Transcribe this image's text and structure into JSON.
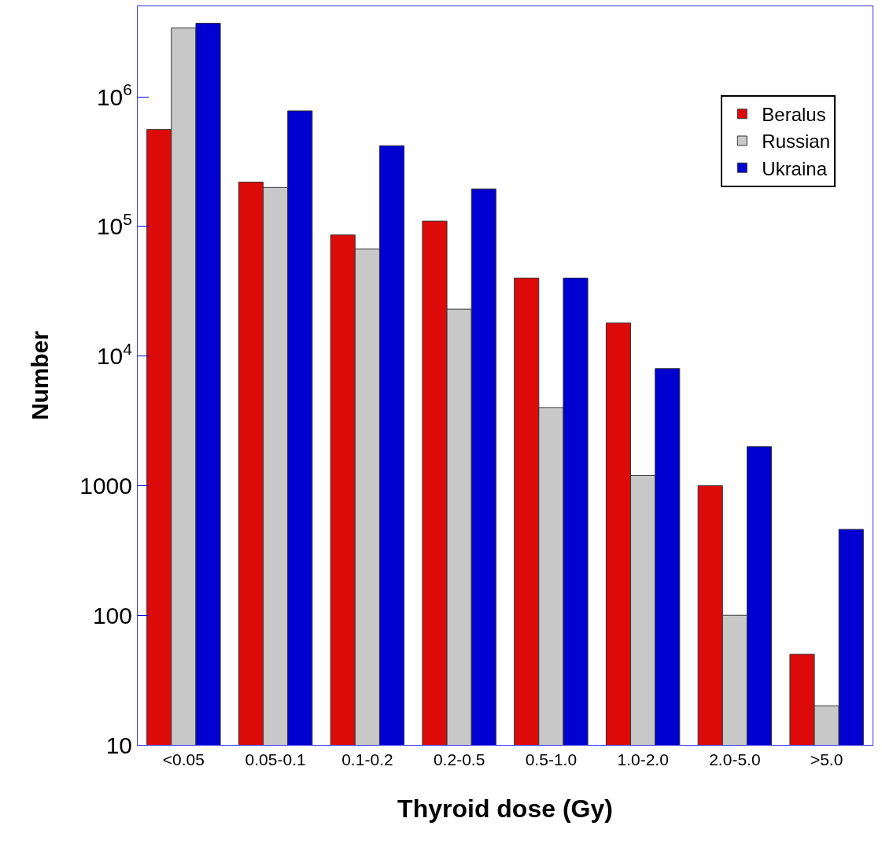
{
  "chart_data": {
    "type": "bar",
    "xlabel": "Thyroid dose (Gy)",
    "ylabel": "Number",
    "categories": [
      "<0.05",
      "0.05-0.1",
      "0.1-0.2",
      "0.2-0.5",
      "0.5-1.0",
      "1.0-2.0",
      "2.0-5.0",
      ">5.0"
    ],
    "series": [
      {
        "name": "Beralus",
        "color": "#dd0a0a",
        "values": [
          560000,
          220000,
          86000,
          110000,
          40000,
          18000,
          1000,
          50
        ]
      },
      {
        "name": "Russian",
        "color": "#c8c8c8",
        "values": [
          3400000,
          200000,
          67000,
          23000,
          4000,
          1200,
          100,
          20
        ]
      },
      {
        "name": "Ukraina",
        "color": "#0000d0",
        "values": [
          3700000,
          780000,
          420000,
          195000,
          40000,
          8000,
          2000,
          460
        ]
      }
    ],
    "log": true,
    "ylim": [
      10,
      5000000
    ],
    "yticks": [
      10,
      100,
      1000,
      {
        "value": 10000,
        "label": "10$^{4}$"
      },
      {
        "value": 100000,
        "label": "10$^{5}$"
      },
      {
        "value": 1000000,
        "label": "10$^{6}$"
      }
    ],
    "grid": false,
    "legend": "top right"
  }
}
